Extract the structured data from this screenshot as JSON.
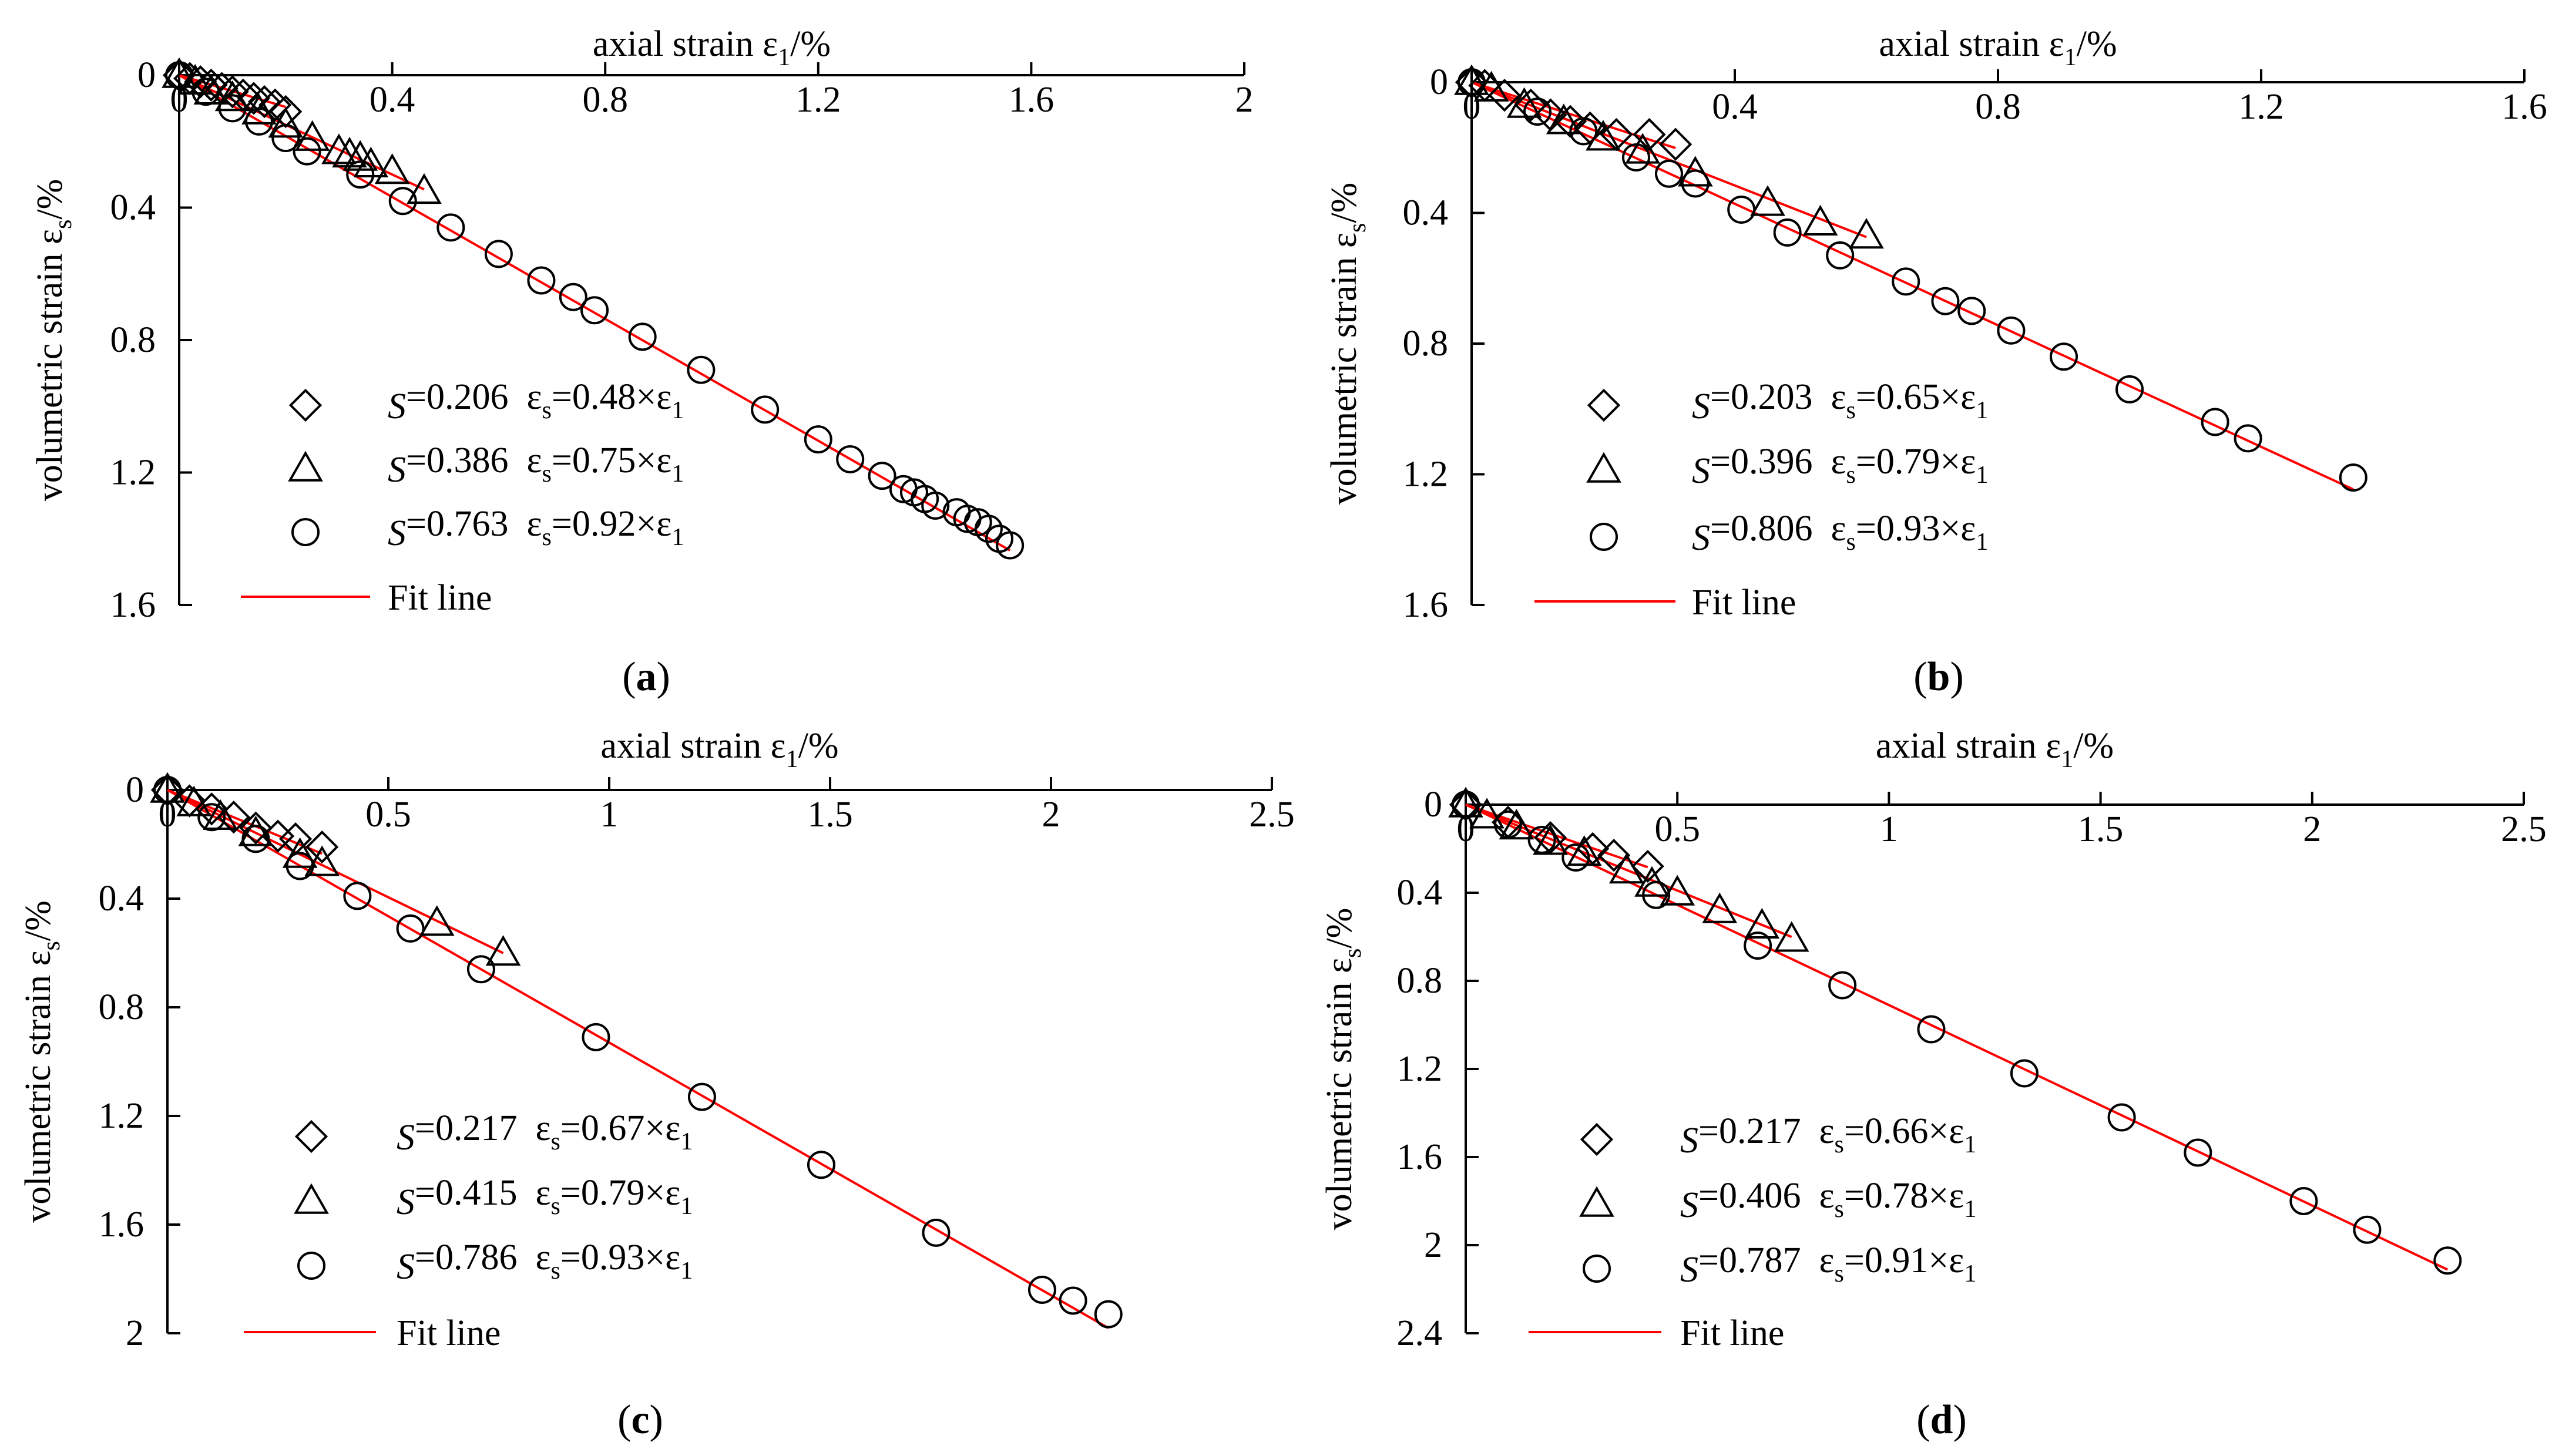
{
  "colors": {
    "axis": "#000000",
    "fit_line": "#ff0000",
    "marker_stroke": "#000000",
    "background": "#ffffff"
  },
  "chart_data": [
    {
      "panel": "a",
      "caption": "(a)",
      "type": "scatter",
      "xlabel": "axial strain ε1/%",
      "ylabel": "volumetric strain εs/%",
      "x_axis_position": "top",
      "y_axis_inverted": true,
      "xlim": [
        0,
        2
      ],
      "ylim": [
        0,
        1.6
      ],
      "xticks": [
        "0",
        "0.4",
        "0.8",
        "1.2",
        "1.6",
        "2"
      ],
      "yticks": [
        "0",
        "0.4",
        "0.8",
        "1.2",
        "1.6"
      ],
      "legend_position": "bottom-left",
      "grid": false,
      "fit_label": "Fit line",
      "series": [
        {
          "name": "S1=0.206  εs=0.48×ε1",
          "s_text": "0.206",
          "eq_coef": "0.48",
          "marker": "diamond",
          "slope": 0.48,
          "x": [
            0.0,
            0.02,
            0.04,
            0.06,
            0.08,
            0.1,
            0.12,
            0.14,
            0.16,
            0.18,
            0.2
          ],
          "y": [
            0.0,
            0.01,
            0.02,
            0.03,
            0.04,
            0.05,
            0.06,
            0.07,
            0.08,
            0.09,
            0.11
          ]
        },
        {
          "name": "S1=0.386  εs=0.75×ε1",
          "s_text": "0.386",
          "eq_coef": "0.75",
          "marker": "triangle",
          "slope": 0.75,
          "x": [
            0.0,
            0.03,
            0.06,
            0.1,
            0.15,
            0.2,
            0.25,
            0.3,
            0.32,
            0.34,
            0.36,
            0.4,
            0.46
          ],
          "y": [
            0.0,
            0.02,
            0.05,
            0.07,
            0.11,
            0.15,
            0.19,
            0.23,
            0.24,
            0.25,
            0.27,
            0.29,
            0.35
          ]
        },
        {
          "name": "S1=0.763  εs=0.92×ε1",
          "s_text": "0.763",
          "eq_coef": "0.92",
          "marker": "circle",
          "slope": 0.92,
          "x": [
            0.0,
            0.05,
            0.1,
            0.15,
            0.2,
            0.24,
            0.34,
            0.42,
            0.51,
            0.6,
            0.68,
            0.74,
            0.78,
            0.87,
            0.98,
            1.1,
            1.2,
            1.26,
            1.32,
            1.36,
            1.38,
            1.4,
            1.42,
            1.46,
            1.48,
            1.5,
            1.52,
            1.54,
            1.56
          ],
          "y": [
            0.0,
            0.05,
            0.1,
            0.14,
            0.19,
            0.23,
            0.3,
            0.38,
            0.46,
            0.54,
            0.62,
            0.67,
            0.71,
            0.79,
            0.89,
            1.01,
            1.1,
            1.16,
            1.21,
            1.25,
            1.26,
            1.28,
            1.3,
            1.32,
            1.34,
            1.35,
            1.37,
            1.4,
            1.42
          ]
        }
      ]
    },
    {
      "panel": "b",
      "caption": "(b)",
      "type": "scatter",
      "xlabel": "axial strain ε1/%",
      "ylabel": "volumetric strain εs/%",
      "x_axis_position": "top",
      "y_axis_inverted": true,
      "xlim": [
        0,
        1.6
      ],
      "ylim": [
        0,
        1.6
      ],
      "xticks": [
        "0",
        "0.4",
        "0.8",
        "1.2",
        "1.6"
      ],
      "yticks": [
        "0",
        "0.4",
        "0.8",
        "1.2",
        "1.6"
      ],
      "legend_position": "bottom-left",
      "grid": false,
      "fit_label": "Fit line",
      "series": [
        {
          "name": "S1=0.203  εs=0.65×ε1",
          "s_text": "0.203",
          "eq_coef": "0.65",
          "marker": "diamond",
          "slope": 0.65,
          "x": [
            0.0,
            0.02,
            0.05,
            0.09,
            0.12,
            0.15,
            0.18,
            0.22,
            0.27,
            0.31
          ],
          "y": [
            0.0,
            0.01,
            0.04,
            0.07,
            0.1,
            0.12,
            0.14,
            0.16,
            0.16,
            0.19
          ]
        },
        {
          "name": "S1=0.396  εs=0.79×ε1",
          "s_text": "0.396",
          "eq_coef": "0.79",
          "marker": "triangle",
          "slope": 0.79,
          "x": [
            0.0,
            0.03,
            0.08,
            0.14,
            0.2,
            0.26,
            0.34,
            0.45,
            0.53,
            0.6
          ],
          "y": [
            0.0,
            0.02,
            0.07,
            0.12,
            0.17,
            0.21,
            0.28,
            0.37,
            0.43,
            0.47
          ]
        },
        {
          "name": "S1=0.806  εs=0.93×ε1",
          "s_text": "0.806",
          "eq_coef": "0.93",
          "marker": "circle",
          "slope": 0.93,
          "x": [
            0.0,
            0.1,
            0.17,
            0.25,
            0.3,
            0.34,
            0.41,
            0.48,
            0.56,
            0.66,
            0.72,
            0.76,
            0.82,
            0.9,
            1.0,
            1.13,
            1.18,
            1.34
          ],
          "y": [
            0.0,
            0.09,
            0.15,
            0.23,
            0.28,
            0.31,
            0.39,
            0.46,
            0.53,
            0.61,
            0.67,
            0.7,
            0.76,
            0.84,
            0.94,
            1.04,
            1.09,
            1.21
          ]
        }
      ]
    },
    {
      "panel": "c",
      "caption": "(c)",
      "type": "scatter",
      "xlabel": "axial strain ε1/%",
      "ylabel": "volumetric strain εs/%",
      "x_axis_position": "top",
      "y_axis_inverted": true,
      "xlim": [
        0,
        2.5
      ],
      "ylim": [
        0,
        2
      ],
      "xticks": [
        "0",
        "0.5",
        "1",
        "1.5",
        "2",
        "2.5"
      ],
      "yticks": [
        "0",
        "0.4",
        "0.8",
        "1.2",
        "1.6",
        "2"
      ],
      "legend_position": "bottom-left",
      "grid": false,
      "fit_label": "Fit line",
      "series": [
        {
          "name": "S1=0.217  εs=0.67×ε1",
          "s_text": "0.217",
          "eq_coef": "0.67",
          "marker": "diamond",
          "slope": 0.67,
          "x": [
            0.0,
            0.05,
            0.1,
            0.15,
            0.2,
            0.25,
            0.29,
            0.35
          ],
          "y": [
            0.0,
            0.04,
            0.07,
            0.1,
            0.14,
            0.17,
            0.18,
            0.21
          ]
        },
        {
          "name": "S1=0.415  εs=0.79×ε1",
          "s_text": "0.415",
          "eq_coef": "0.79",
          "marker": "triangle",
          "slope": 0.79,
          "x": [
            0.0,
            0.06,
            0.12,
            0.2,
            0.3,
            0.35,
            0.61,
            0.76
          ],
          "y": [
            0.0,
            0.05,
            0.1,
            0.16,
            0.24,
            0.27,
            0.49,
            0.6
          ]
        },
        {
          "name": "S1=0.786  εs=0.93×ε1",
          "s_text": "0.786",
          "eq_coef": "0.93",
          "marker": "circle",
          "slope": 0.93,
          "x": [
            0.0,
            0.1,
            0.2,
            0.3,
            0.43,
            0.55,
            0.71,
            0.97,
            1.21,
            1.48,
            1.74,
            1.98,
            2.05,
            2.13
          ],
          "y": [
            0.0,
            0.1,
            0.18,
            0.28,
            0.39,
            0.51,
            0.66,
            0.91,
            1.13,
            1.38,
            1.63,
            1.84,
            1.88,
            1.93
          ]
        }
      ]
    },
    {
      "panel": "d",
      "caption": "(d)",
      "type": "scatter",
      "xlabel": "axial strain ε1/%",
      "ylabel": "volumetric strain εs/%",
      "x_axis_position": "top",
      "y_axis_inverted": true,
      "xlim": [
        0,
        2.5
      ],
      "ylim": [
        0,
        2.4
      ],
      "xticks": [
        "0",
        "0.5",
        "1",
        "1.5",
        "2",
        "2.5"
      ],
      "yticks": [
        "0",
        "0.4",
        "0.8",
        "1.2",
        "1.6",
        "2",
        "2.4"
      ],
      "legend_position": "bottom-left",
      "grid": false,
      "fit_label": "Fit line",
      "series": [
        {
          "name": "S1=0.217  εs=0.66×ε1",
          "s_text": "0.217",
          "eq_coef": "0.66",
          "marker": "diamond",
          "slope": 0.66,
          "x": [
            0.0,
            0.1,
            0.2,
            0.3,
            0.35,
            0.43
          ],
          "y": [
            0.0,
            0.08,
            0.15,
            0.2,
            0.23,
            0.28
          ]
        },
        {
          "name": "S1=0.406  εs=0.78×ε1",
          "s_text": "0.406",
          "eq_coef": "0.78",
          "marker": "triangle",
          "slope": 0.78,
          "x": [
            0.0,
            0.05,
            0.12,
            0.2,
            0.28,
            0.38,
            0.44,
            0.5,
            0.6,
            0.7,
            0.77
          ],
          "y": [
            0.0,
            0.05,
            0.1,
            0.17,
            0.22,
            0.3,
            0.36,
            0.4,
            0.48,
            0.55,
            0.61
          ]
        },
        {
          "name": "S1=0.787  εs=0.91×ε1",
          "s_text": "0.787",
          "eq_coef": "0.91",
          "marker": "circle",
          "slope": 0.91,
          "x": [
            0.0,
            0.1,
            0.18,
            0.26,
            0.45,
            0.69,
            0.89,
            1.1,
            1.32,
            1.55,
            1.73,
            1.98,
            2.13,
            2.32
          ],
          "y": [
            0.0,
            0.09,
            0.16,
            0.24,
            0.41,
            0.64,
            0.82,
            1.02,
            1.22,
            1.42,
            1.58,
            1.8,
            1.93,
            2.07
          ]
        }
      ]
    }
  ]
}
